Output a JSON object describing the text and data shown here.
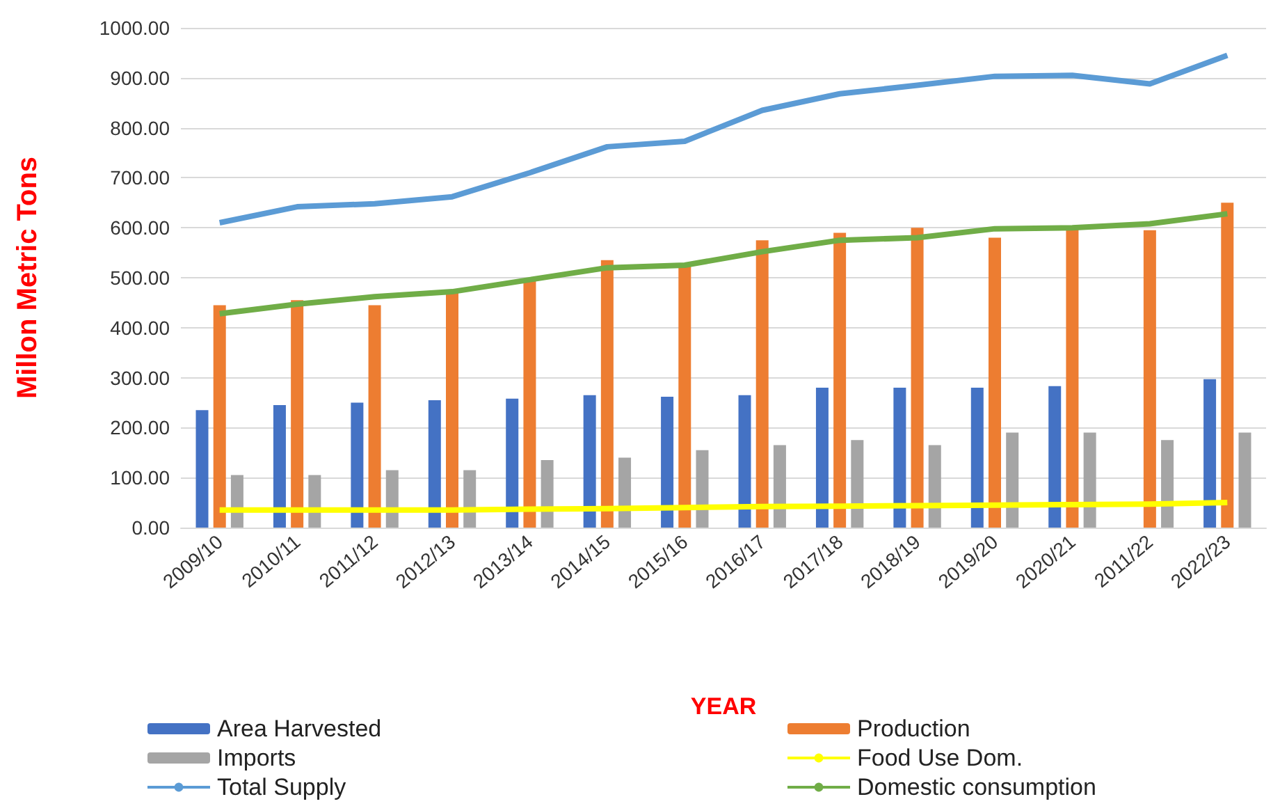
{
  "chart_data": {
    "type": "bar",
    "xlabel": "YEAR",
    "ylabel": "Millon Metric Tons",
    "categories": [
      "2009/10",
      "2010/11",
      "2011/12",
      "2012/13",
      "2013/14",
      "2014/15",
      "2015/16",
      "2016/17",
      "2017/18",
      "2018/19",
      "2019/20",
      "2020/21",
      "2011/22",
      "2022/23"
    ],
    "series": [
      {
        "name": "Area Harvested",
        "color": "#4472c4",
        "values": [
          235,
          245,
          250,
          255,
          258,
          265,
          262,
          265,
          280,
          280,
          280,
          283,
          null,
          297
        ]
      },
      {
        "name": "Production",
        "color": "#ed7d31",
        "values": [
          445,
          455,
          445,
          470,
          495,
          535,
          525,
          575,
          590,
          600,
          580,
          600,
          595,
          650
        ]
      },
      {
        "name": "Imports",
        "color": "#a5a5a5",
        "values": [
          105,
          105,
          115,
          115,
          135,
          140,
          155,
          165,
          175,
          165,
          190,
          190,
          175,
          190
        ]
      },
      {
        "name": "Food Use Dom.",
        "type": "line",
        "color": "#ffff00",
        "values": [
          35,
          35,
          35,
          35,
          37,
          38,
          40,
          42,
          43,
          44,
          45,
          46,
          47,
          50
        ]
      },
      {
        "name": "Total Supply",
        "type": "line",
        "color": "#5b9bd5",
        "values": [
          610,
          642,
          648,
          662,
          710,
          762,
          773,
          835,
          868,
          885,
          903,
          905,
          888,
          945
        ]
      },
      {
        "name": "Domestic consumption",
        "type": "line",
        "color": "#70ad47",
        "values": [
          428,
          447,
          462,
          472,
          496,
          520,
          525,
          552,
          575,
          580,
          598,
          600,
          608,
          628
        ]
      }
    ],
    "ylim": [
      0,
      1000
    ],
    "yticks": [
      {
        "value": 0,
        "label": "0.00"
      },
      {
        "value": 100,
        "label": "100.00"
      },
      {
        "value": 200,
        "label": "200.00"
      },
      {
        "value": 300,
        "label": "300.00"
      },
      {
        "value": 400,
        "label": "400.00"
      },
      {
        "value": 500,
        "label": "500.00"
      },
      {
        "value": 600,
        "label": "600.00"
      },
      {
        "value": 700,
        "label": "700.00"
      },
      {
        "value": 800,
        "label": "800.00"
      },
      {
        "value": 900,
        "label": "900.00"
      },
      {
        "value": 1000,
        "label": "1000.00"
      }
    ],
    "grid": "y",
    "legend": "bottom",
    "marker": "none",
    "line_style": "solid"
  }
}
